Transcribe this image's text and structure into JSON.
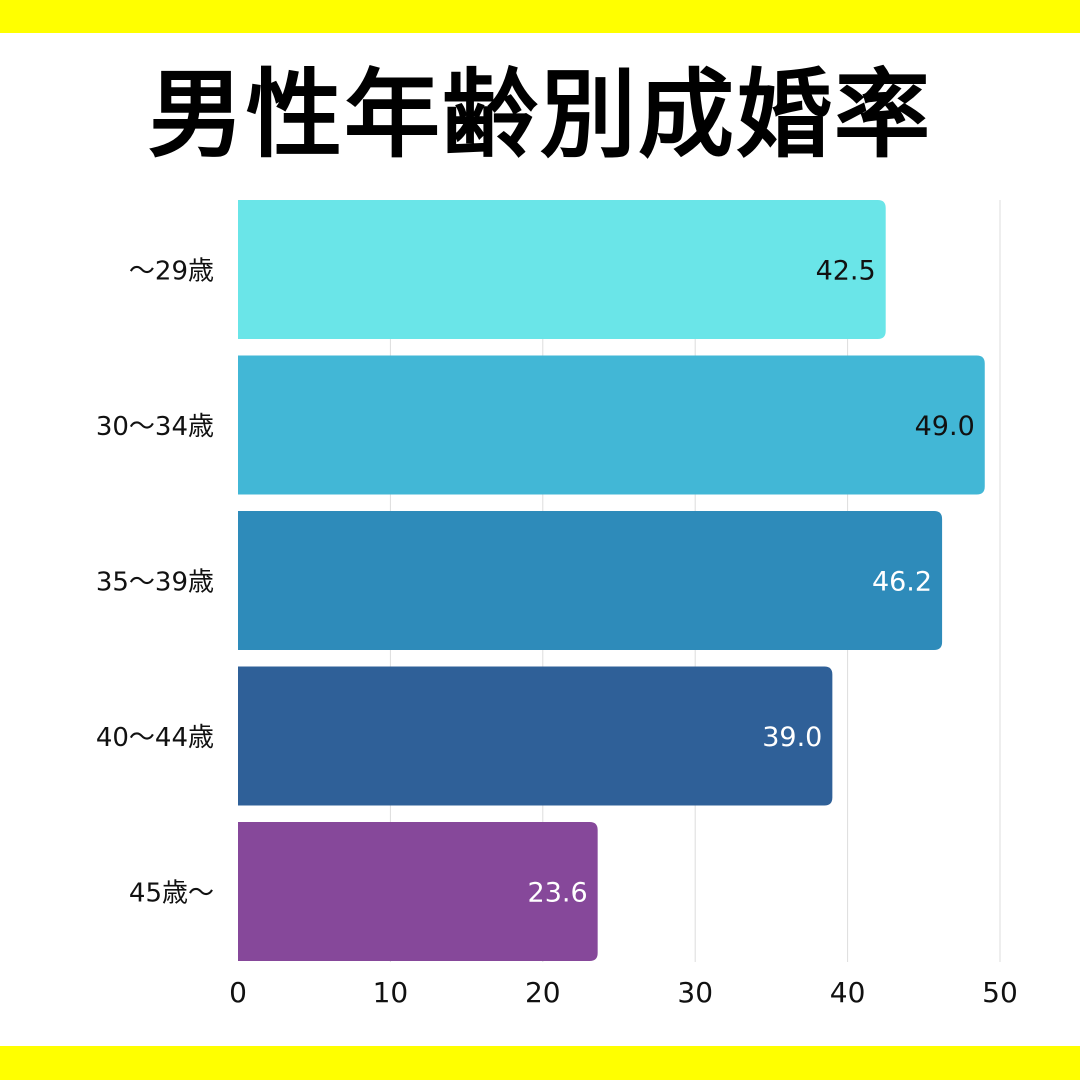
{
  "title": "男性年齢別成婚率",
  "colors": {
    "stripe": "#ffff00",
    "grid": "#dddddd",
    "text": "#111111"
  },
  "chart_data": {
    "type": "bar",
    "orientation": "horizontal",
    "title": "男性年齢別成婚率",
    "categories": [
      "～29歳",
      "30～34歳",
      "35～39歳",
      "40～44歳",
      "45歳～"
    ],
    "values": [
      42.5,
      49.0,
      46.2,
      39.0,
      23.6
    ],
    "value_labels": [
      "42.5",
      "49.0",
      "46.2",
      "39.0",
      "23.6"
    ],
    "bar_colors": [
      "#6ae5e8",
      "#42b7d6",
      "#2e8bba",
      "#2f6098",
      "#86489a"
    ],
    "label_colors": [
      "#111111",
      "#111111",
      "#ffffff",
      "#ffffff",
      "#ffffff"
    ],
    "xlim": [
      0,
      50
    ],
    "xticks": [
      0,
      10,
      20,
      30,
      40,
      50
    ],
    "xlabel": "",
    "ylabel": "",
    "grid": true,
    "legend": "none"
  }
}
